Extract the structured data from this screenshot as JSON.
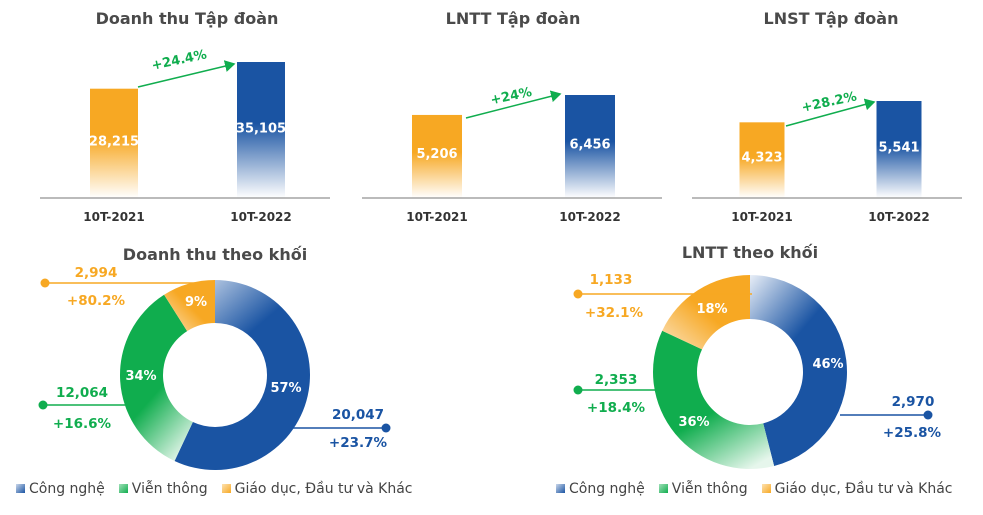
{
  "colors": {
    "blue": "#1a54a3",
    "green": "#10ad4e",
    "orange": "#f7a823",
    "title": "#4a4a4a",
    "axis": "#555555"
  },
  "chart_data": [
    {
      "type": "bar",
      "title": "Doanh thu Tập đoàn",
      "categories": [
        "10T-2021",
        "10T-2022"
      ],
      "values": [
        28215,
        35105
      ],
      "value_labels": [
        "28,215",
        "35,105"
      ],
      "growth": "+24.4%"
    },
    {
      "type": "bar",
      "title": "LNTT Tập đoàn",
      "categories": [
        "10T-2021",
        "10T-2022"
      ],
      "values": [
        5206,
        6456
      ],
      "value_labels": [
        "5,206",
        "6,456"
      ],
      "growth": "+24%"
    },
    {
      "type": "bar",
      "title": "LNST Tập đoàn",
      "categories": [
        "10T-2021",
        "10T-2022"
      ],
      "values": [
        4323,
        5541
      ],
      "value_labels": [
        "4,323",
        "5,541"
      ],
      "growth": "+28.2%"
    },
    {
      "type": "pie",
      "title": "Doanh thu theo khối",
      "legend": [
        "Công nghệ",
        "Viễn thông",
        "Giáo dục, Đầu tư và Khác"
      ],
      "slices": [
        {
          "name": "Công nghệ",
          "percent": 57,
          "percent_label": "57%",
          "value": "20,047",
          "growth": "+23.7%"
        },
        {
          "name": "Viễn thông",
          "percent": 34,
          "percent_label": "34%",
          "value": "12,064",
          "growth": "+16.6%"
        },
        {
          "name": "Giáo dục, Đầu tư và Khác",
          "percent": 9,
          "percent_label": "9%",
          "value": "2,994",
          "growth": "+80.2%"
        }
      ]
    },
    {
      "type": "pie",
      "title": "LNTT theo khối",
      "legend": [
        "Công nghệ",
        "Viễn thông",
        "Giáo dục, Đầu tư và Khác"
      ],
      "slices": [
        {
          "name": "Công nghệ",
          "percent": 46,
          "percent_label": "46%",
          "value": "2,970",
          "growth": "+25.8%"
        },
        {
          "name": "Viễn thông",
          "percent": 36,
          "percent_label": "36%",
          "value": "2,353",
          "growth": "+18.4%"
        },
        {
          "name": "Giáo dục, Đầu tư và Khác",
          "percent": 18,
          "percent_label": "18%",
          "value": "1,133",
          "growth": "+32.1%"
        }
      ]
    }
  ]
}
